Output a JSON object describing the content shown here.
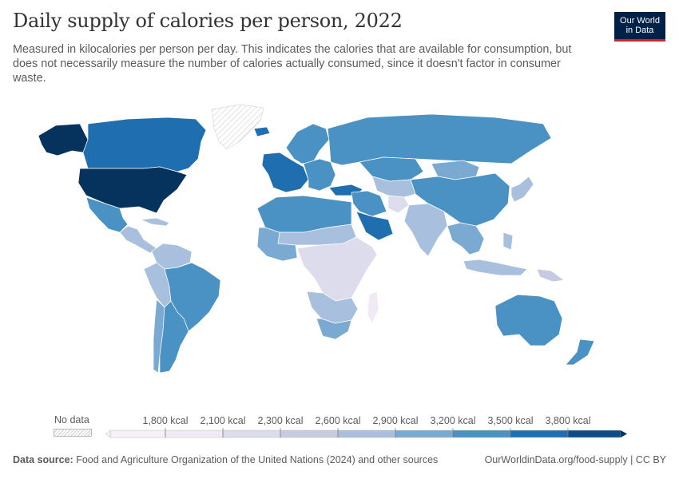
{
  "title": "Daily supply of calories per person, 2022",
  "subtitle": "Measured in kilocalories per person per day. This indicates the calories that are available for consumption, but does not necessarily measure the number of calories actually consumed, since it doesn't factor in consumer waste.",
  "logo": {
    "line1": "Our World",
    "line2": "in Data"
  },
  "legend": {
    "no_data_label": "No data",
    "bins": [
      {
        "label": "1,800 kcal",
        "color": "#f1e9f4"
      },
      {
        "label": "2,100 kcal",
        "color": "#dcdcec"
      },
      {
        "label": "2,300 kcal",
        "color": "#c6cbe2"
      },
      {
        "label": "2,600 kcal",
        "color": "#a8bfdd"
      },
      {
        "label": "2,900 kcal",
        "color": "#7aaad1"
      },
      {
        "label": "3,200 kcal",
        "color": "#4a92c4"
      },
      {
        "label": "3,500 kcal",
        "color": "#1f6fb0"
      },
      {
        "label": "3,800 kcal",
        "color": "#0d4d86"
      }
    ],
    "top_color": "#06325e",
    "first_color": "#f7f1f7"
  },
  "footer": {
    "source_label": "Data source:",
    "source_text": "Food and Agriculture Organization of the United Nations (2024) and other sources",
    "url_license": "OurWorldinData.org/food-supply | CC BY"
  },
  "chart_data": {
    "type": "choropleth",
    "unit": "kcal",
    "year": 2022,
    "bins": [
      1800,
      2100,
      2300,
      2600,
      2900,
      3200,
      3500,
      3800
    ],
    "regions": [
      {
        "name": "Greenland",
        "value": null
      },
      {
        "name": "Alaska",
        "value": 3800
      },
      {
        "name": "Canada",
        "value": 3600
      },
      {
        "name": "United States",
        "value": 3900
      },
      {
        "name": "Mexico",
        "value": 3300
      },
      {
        "name": "Central America & Caribbean",
        "value": 2700
      },
      {
        "name": "Colombia & Venezuela",
        "value": 2800
      },
      {
        "name": "Peru & Bolivia",
        "value": 2700
      },
      {
        "name": "Brazil",
        "value": 3300
      },
      {
        "name": "Chile",
        "value": 3000
      },
      {
        "name": "Argentina",
        "value": 3350
      },
      {
        "name": "Iceland",
        "value": 3500
      },
      {
        "name": "Scandinavia",
        "value": 3400
      },
      {
        "name": "Western Europe",
        "value": 3550
      },
      {
        "name": "Eastern Europe",
        "value": 3450
      },
      {
        "name": "Russia",
        "value": 3400
      },
      {
        "name": "Kazakhstan",
        "value": 3300
      },
      {
        "name": "Mongolia",
        "value": 3000
      },
      {
        "name": "China",
        "value": 3400
      },
      {
        "name": "Japan & Korea",
        "value": 2750
      },
      {
        "name": "Turkey",
        "value": 3700
      },
      {
        "name": "North Africa",
        "value": 3300
      },
      {
        "name": "Middle East",
        "value": 3200
      },
      {
        "name": "Saudi Arabia",
        "value": 3600
      },
      {
        "name": "Central Asia",
        "value": 2700
      },
      {
        "name": "Afghanistan",
        "value": 2200
      },
      {
        "name": "India",
        "value": 2600
      },
      {
        "name": "Southeast Asia",
        "value": 2900
      },
      {
        "name": "Indonesia & Philippines",
        "value": 2800
      },
      {
        "name": "Papua New Guinea",
        "value": 2400
      },
      {
        "name": "Sahel",
        "value": 2600
      },
      {
        "name": "West Africa",
        "value": 2900
      },
      {
        "name": "Central & East Africa",
        "value": 2100
      },
      {
        "name": "Southern Africa",
        "value": 2600
      },
      {
        "name": "South Africa",
        "value": 2900
      },
      {
        "name": "Madagascar",
        "value": 2000
      },
      {
        "name": "Australia",
        "value": 3400
      },
      {
        "name": "New Zealand",
        "value": 3200
      }
    ]
  }
}
